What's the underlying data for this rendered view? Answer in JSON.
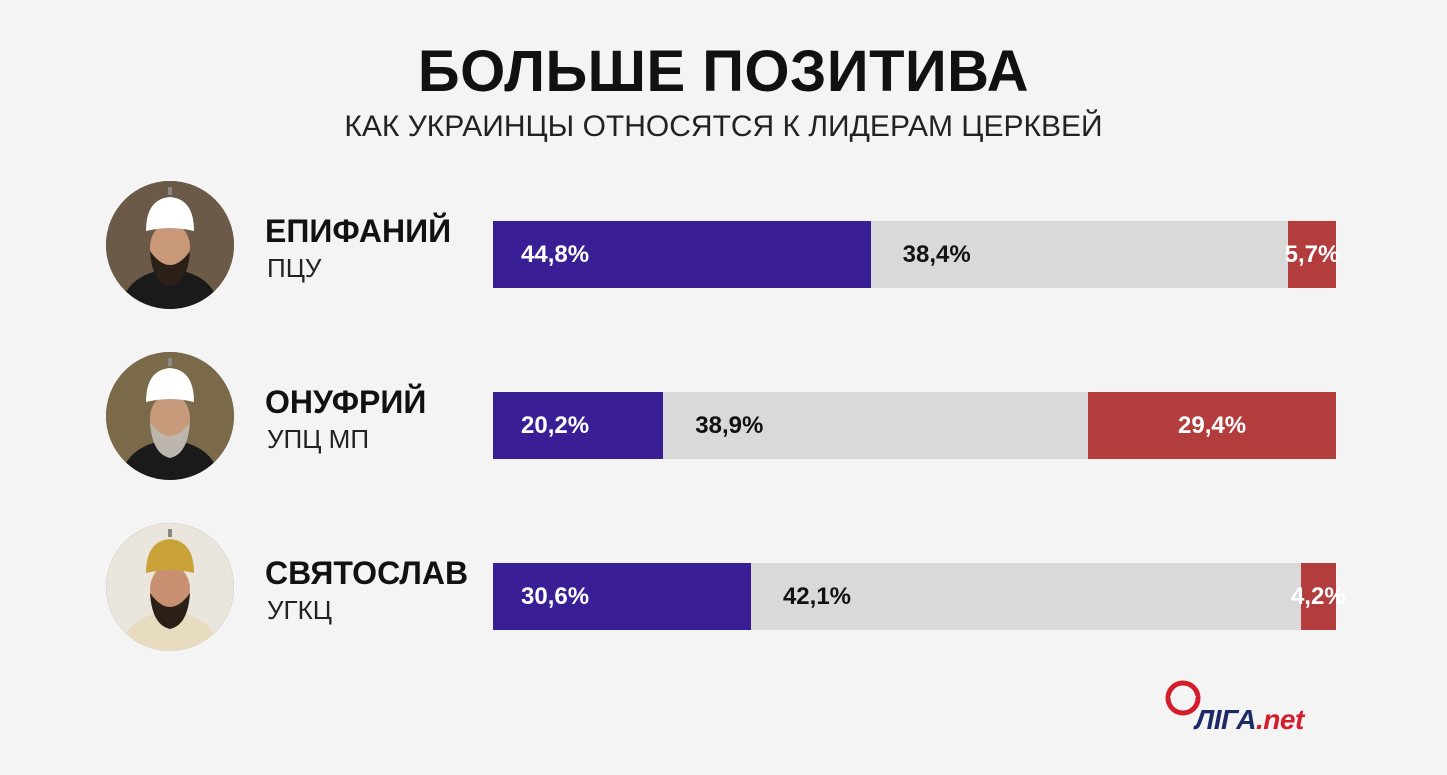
{
  "title": "БОЛЬШЕ ПОЗИТИВА",
  "subtitle": "КАК УКРАИНЦЫ ОТНОСЯТСЯ К ЛИДЕРАМ ЦЕРКВЕЙ",
  "colors": {
    "positive": "#3a1e96",
    "neutral": "#d9d9d9",
    "negative": "#b33d3d"
  },
  "logo": {
    "main": "ЛIГА",
    "suffix": ".net"
  },
  "chart_data": {
    "type": "bar",
    "stacked": true,
    "orientation": "horizontal",
    "categories": [
      "ЕПИФАНИЙ",
      "ОНУФРИЙ",
      "СВЯТОСЛАВ"
    ],
    "subcategories": [
      "ПЦУ",
      "УПЦ МП",
      "УГКЦ"
    ],
    "series": [
      {
        "values": [
          44.8,
          20.2,
          30.6
        ],
        "labels": [
          "44,8%",
          "20,2%",
          "30,6%"
        ],
        "color": "#3a1e96"
      },
      {
        "values": [
          38.4,
          38.9,
          42.1
        ],
        "labels": [
          "38,4%",
          "38,9%",
          "42,1%"
        ],
        "color": "#d9d9d9"
      },
      {
        "values": [
          5.7,
          29.4,
          4.2
        ],
        "labels": [
          "5,7%",
          "29,4%",
          "4,2%"
        ],
        "color": "#b33d3d"
      }
    ]
  }
}
